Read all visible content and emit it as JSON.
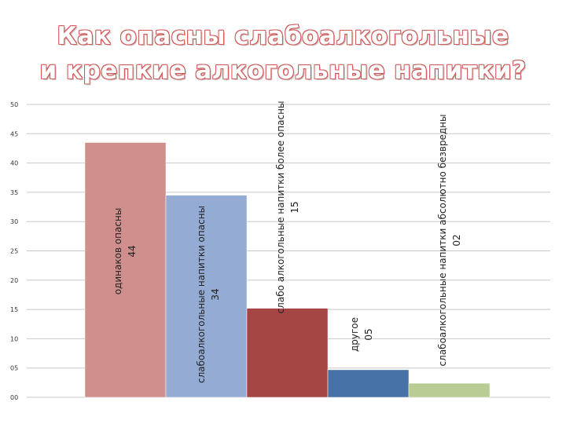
{
  "title": {
    "line1": "Как опасны слабоалкогольные",
    "line2": "и крепкие алкогольные напитки?"
  },
  "chart_data": {
    "type": "bar",
    "categories": [
      "одинаков опасны",
      "слабоалкогольные напитки опасны",
      "слабо алкогольные напитки более опасны",
      "другое",
      "слабоалкогольные напитки абсолютно безвредны"
    ],
    "values": [
      43.5,
      34.5,
      15.2,
      4.7,
      2.4
    ],
    "value_labels": [
      "44",
      "34",
      "15",
      "05",
      "02"
    ],
    "colors": [
      "#cf8f8d",
      "#94abd4",
      "#a64644",
      "#4672a8",
      "#b8cc94"
    ],
    "ylim": [
      0,
      50
    ],
    "yticks": [
      0,
      5,
      10,
      15,
      20,
      25,
      30,
      35,
      40,
      45,
      50
    ],
    "ytick_labels": [
      "00",
      "05",
      "10",
      "15",
      "20",
      "25",
      "30",
      "35",
      "40",
      "45",
      "50"
    ],
    "grid": true
  }
}
